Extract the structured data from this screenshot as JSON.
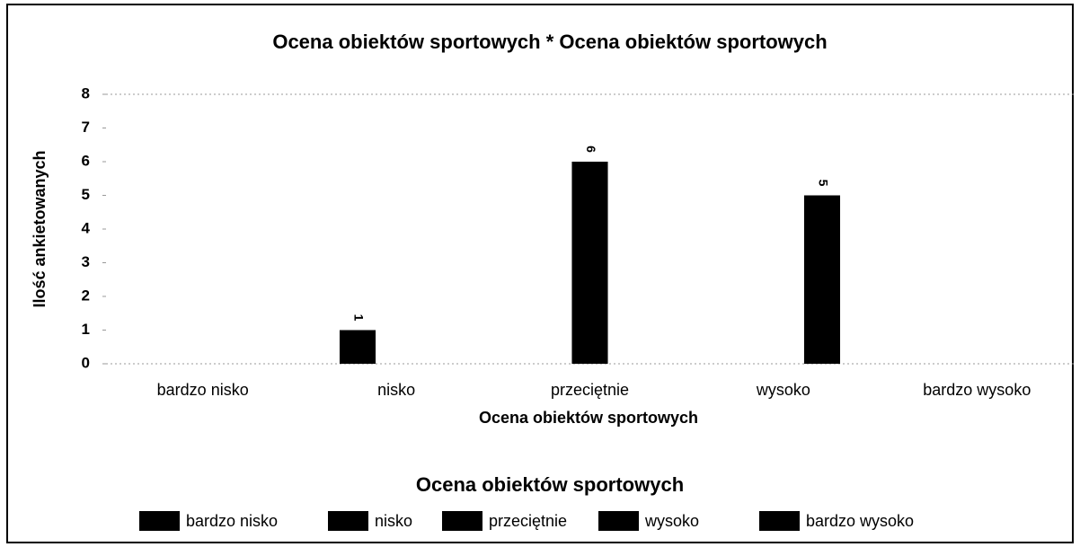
{
  "chart_data": {
    "type": "bar",
    "title": "Ocena obiektów sportowych * Ocena obiektów sportowych",
    "x_label": "Ocena obiektów sportowych",
    "y_label": "Ilość ankietowanych",
    "categories": [
      "bardzo nisko",
      "nisko",
      "przeciętnie",
      "wysoko",
      "bardzo wysoko"
    ],
    "values": [
      0,
      1,
      6,
      5,
      0
    ],
    "color": "#000000",
    "ylim": [
      0,
      8
    ],
    "yticks": [
      0,
      1,
      2,
      3,
      4,
      5,
      6,
      7,
      8
    ],
    "grid": false,
    "legend_title": "Ocena obiektów sportowych",
    "legend_position": "bottom"
  }
}
